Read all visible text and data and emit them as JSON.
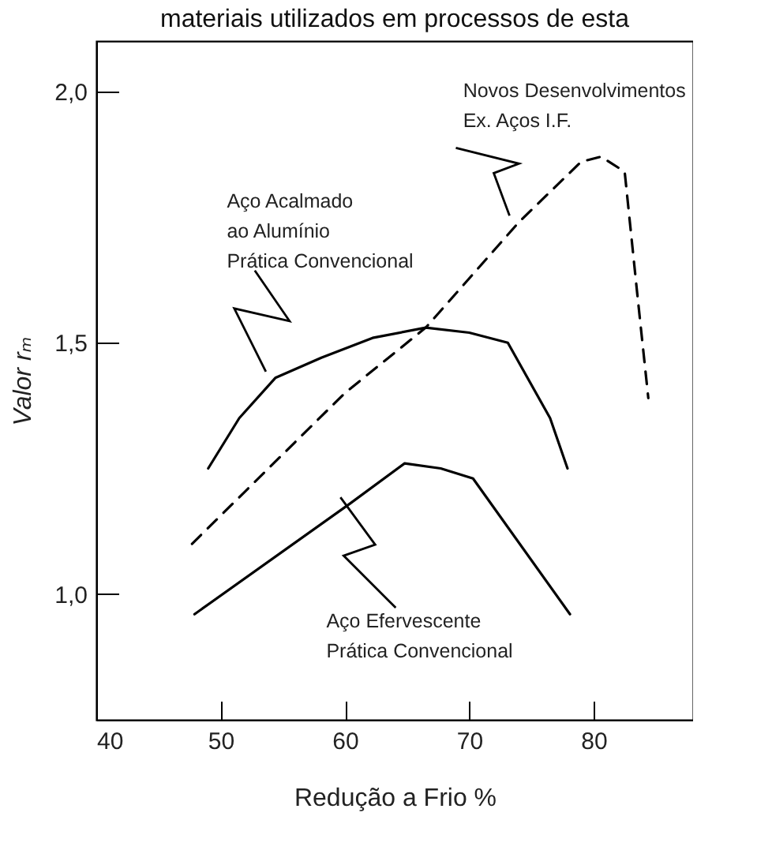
{
  "chart_data": {
    "type": "line",
    "title": "materiais utilizados em processos de esta",
    "xlabel": "Redução a Frio %",
    "ylabel": "Valor rₘ",
    "xlim": [
      40,
      88
    ],
    "xticks": [
      40,
      50,
      60,
      70,
      80
    ],
    "ylim": [
      0.75,
      2.1
    ],
    "yticks": [
      {
        "value": 1.0,
        "label": "1,0"
      },
      {
        "value": 1.5,
        "label": "1,5"
      },
      {
        "value": 2.0,
        "label": "2,0"
      }
    ],
    "grid": false,
    "marker": "none",
    "series": [
      {
        "color": "#000000",
        "line_style": "solid",
        "x": [
          49,
          51.5,
          54.4,
          58.1,
          62.3,
          66.5,
          70,
          73.1,
          76.5,
          77.9
        ],
        "values": [
          1.25,
          1.35,
          1.43,
          1.47,
          1.51,
          1.53,
          1.52,
          1.5,
          1.35,
          1.25
        ]
      },
      {
        "color": "#000000",
        "line_style": "dashed",
        "x": [
          47.7,
          60,
          66.5,
          74,
          79,
          80.6,
          82.5,
          83.5,
          84.4
        ],
        "values": [
          1.1,
          1.4,
          1.53,
          1.74,
          1.86,
          1.87,
          1.84,
          1.6,
          1.39
        ]
      },
      {
        "color": "#000000",
        "line_style": "solid",
        "x": [
          47.9,
          60.4,
          64.8,
          67.7,
          70.3,
          78.1
        ],
        "values": [
          0.96,
          1.18,
          1.26,
          1.25,
          1.23,
          0.96
        ]
      }
    ],
    "annotations": [
      {
        "text": "Novos Desenvolvimentos\nEx. Aços I.F.",
        "x": 74,
        "y": 1.74
      },
      {
        "text": "Aço Acalmado\nao Alumínio\nPrática Convencional",
        "x": 54.4,
        "y": 1.43
      },
      {
        "text": "Aço Efervescente\nPrática Convencional",
        "x": 60.4,
        "y": 1.18
      }
    ]
  }
}
